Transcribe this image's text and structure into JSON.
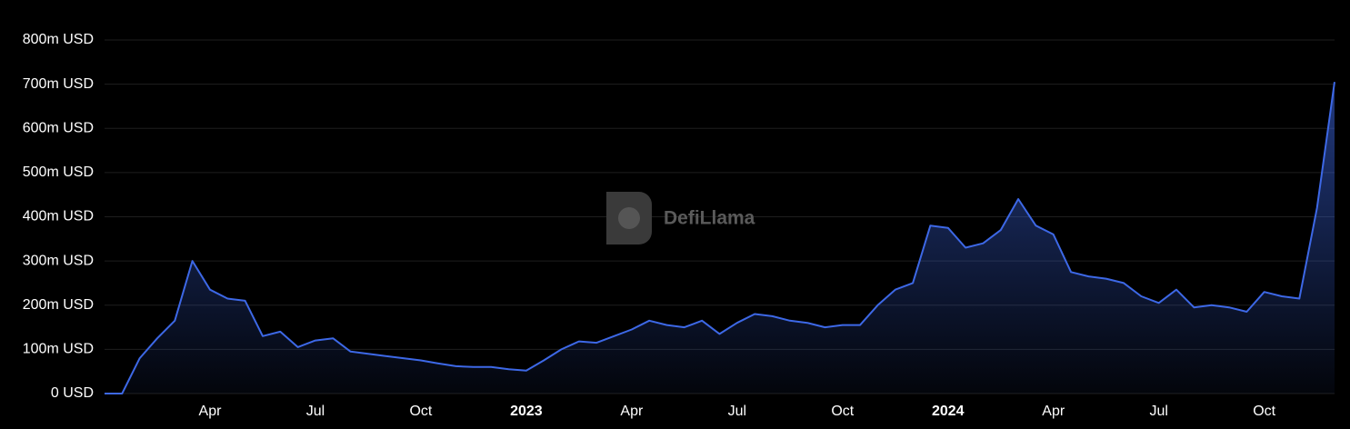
{
  "watermark": "DefiLlama",
  "chart_data": {
    "type": "area",
    "categories": [
      null,
      null,
      null,
      null,
      null,
      null,
      "Apr",
      null,
      null,
      null,
      null,
      null,
      "Jul",
      null,
      null,
      null,
      null,
      null,
      "Oct",
      null,
      null,
      null,
      null,
      null,
      "2023",
      null,
      null,
      null,
      null,
      null,
      "Apr",
      null,
      null,
      null,
      null,
      null,
      "Jul",
      null,
      null,
      null,
      null,
      null,
      "Oct",
      null,
      null,
      null,
      null,
      null,
      "2024",
      null,
      null,
      null,
      null,
      null,
      "Apr",
      null,
      null,
      null,
      null,
      null,
      "Jul",
      null,
      null,
      null,
      null,
      null,
      "Oct",
      null,
      null,
      null,
      null
    ],
    "values": [
      0,
      0,
      80,
      125,
      165,
      300,
      235,
      215,
      210,
      130,
      140,
      105,
      120,
      125,
      95,
      90,
      85,
      80,
      75,
      68,
      62,
      60,
      60,
      55,
      52,
      75,
      100,
      118,
      115,
      130,
      145,
      165,
      155,
      150,
      165,
      135,
      160,
      180,
      175,
      165,
      160,
      150,
      155,
      155,
      200,
      235,
      250,
      380,
      375,
      330,
      340,
      370,
      440,
      380,
      360,
      275,
      265,
      260,
      250,
      220,
      205,
      235,
      195,
      200,
      195,
      185,
      230,
      220,
      215,
      420,
      705
    ],
    "color": "#3d68e6",
    "ylim": [
      0,
      800
    ],
    "yticks": [
      {
        "value": 0,
        "label": "0 USD"
      },
      {
        "value": 100,
        "label": "100m USD"
      },
      {
        "value": 200,
        "label": "200m USD"
      },
      {
        "value": 300,
        "label": "300m USD"
      },
      {
        "value": 400,
        "label": "400m USD"
      },
      {
        "value": 500,
        "label": "500m USD"
      },
      {
        "value": 600,
        "label": "600m USD"
      },
      {
        "value": 700,
        "label": "700m USD"
      },
      {
        "value": 800,
        "label": "800m USD"
      }
    ],
    "grid": true
  }
}
